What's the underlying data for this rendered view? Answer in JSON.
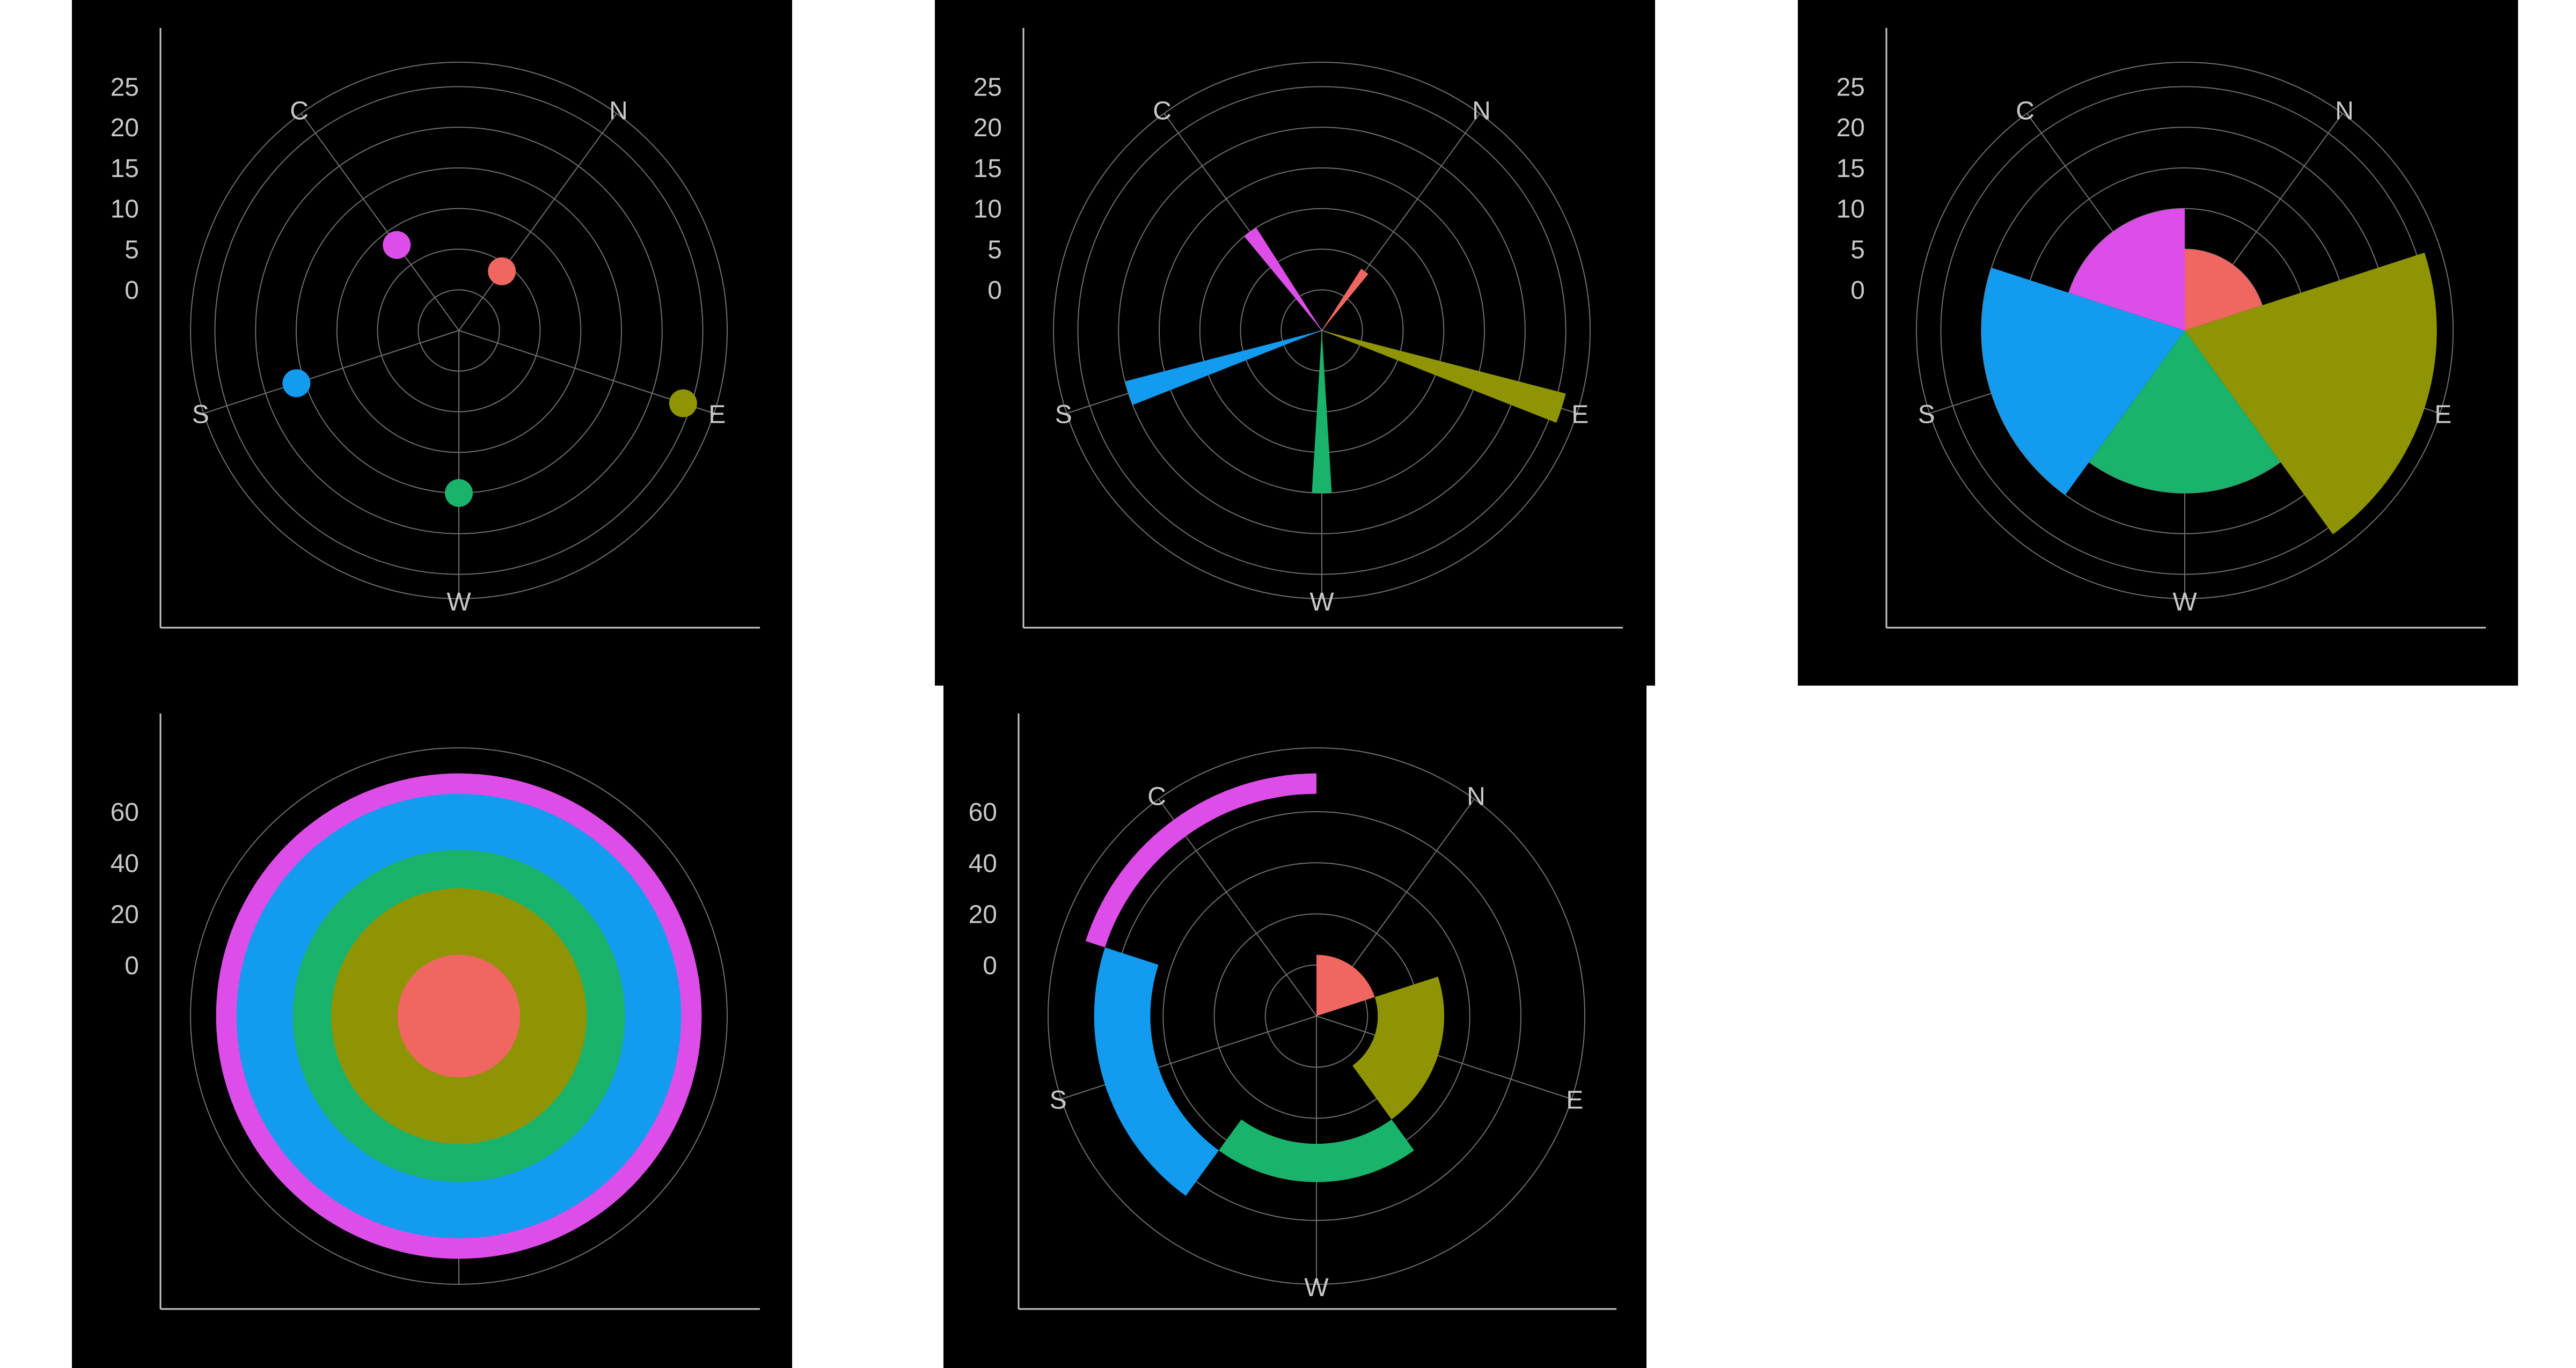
{
  "colors": {
    "background": "#000000",
    "grid": "#6e6e6e",
    "axis": "#c8c8c8",
    "text": "#c8c8c8"
  },
  "chart_data": [
    {
      "type": "scatter",
      "coord": "polar",
      "direction_labels": [
        "C",
        "N",
        "E",
        "W",
        "S"
      ],
      "angular_categories": [
        "C",
        "N",
        "E",
        "W",
        "S"
      ],
      "r_ticks": [
        0,
        5,
        10,
        15,
        20,
        25
      ],
      "rlim": [
        -5,
        28
      ],
      "points": [
        {
          "theta": "C",
          "r": 8,
          "color": "#dd4de8"
        },
        {
          "theta": "N",
          "r": 4,
          "color": "#f06660"
        },
        {
          "theta": "E",
          "r": 24,
          "color": "#8f9405"
        },
        {
          "theta": "W",
          "r": 15,
          "color": "#19b36b"
        },
        {
          "theta": "S",
          "r": 16,
          "color": "#139bef"
        }
      ]
    },
    {
      "type": "bar",
      "coord": "polar",
      "direction_labels": [
        "C",
        "N",
        "E",
        "W",
        "S"
      ],
      "angular_categories": [
        "C",
        "N",
        "E",
        "W",
        "S"
      ],
      "r_ticks": [
        0,
        5,
        10,
        15,
        20,
        25
      ],
      "rlim": [
        -5,
        28
      ],
      "bars": [
        {
          "theta": "C",
          "r": 10,
          "color": "#dd4de8"
        },
        {
          "theta": "N",
          "r": 4,
          "color": "#f06660"
        },
        {
          "theta": "E",
          "r": 26,
          "color": "#8f9405"
        },
        {
          "theta": "W",
          "r": 15,
          "color": "#19b36b"
        },
        {
          "theta": "S",
          "r": 20,
          "color": "#139bef"
        }
      ]
    },
    {
      "type": "area",
      "subtype": "rose",
      "coord": "polar",
      "direction_labels": [
        "C",
        "N",
        "E",
        "W",
        "S"
      ],
      "angular_categories": [
        "N",
        "E",
        "W",
        "S",
        "C"
      ],
      "r_ticks": [
        0,
        5,
        10,
        15,
        20,
        25
      ],
      "rlim": [
        -5,
        28
      ],
      "wedges": [
        {
          "category": "N",
          "r": 5,
          "color": "#f06660"
        },
        {
          "category": "E",
          "r": 26,
          "color": "#8f9405"
        },
        {
          "category": "W",
          "r": 15,
          "color": "#19b36b"
        },
        {
          "category": "S",
          "r": 20,
          "color": "#139bef"
        },
        {
          "category": "C",
          "r": 10,
          "color": "#dd4de8"
        }
      ]
    },
    {
      "type": "bar",
      "subtype": "stacked-radial",
      "coord": "polar",
      "r_ticks": [
        0,
        20,
        40,
        60
      ],
      "rlim": [
        -20,
        85
      ],
      "rings": [
        {
          "r0": 0,
          "r1": 4,
          "color": "#f06660"
        },
        {
          "r0": 4,
          "r1": 30,
          "color": "#8f9405"
        },
        {
          "r0": 30,
          "r1": 45,
          "color": "#19b36b"
        },
        {
          "r0": 45,
          "r1": 67,
          "color": "#139bef"
        },
        {
          "r0": 67,
          "r1": 75,
          "color": "#dd4de8"
        }
      ]
    },
    {
      "type": "bar",
      "subtype": "stacked-polar",
      "coord": "polar",
      "direction_labels": [
        "C",
        "N",
        "E",
        "W",
        "S"
      ],
      "angular_categories": [
        "N",
        "E",
        "W",
        "S",
        "C"
      ],
      "r_ticks": [
        0,
        20,
        40,
        60
      ],
      "rlim": [
        -20,
        85
      ],
      "segments": [
        {
          "category": "N",
          "r0": 0,
          "r1": 4,
          "color": "#f06660"
        },
        {
          "category": "E",
          "r0": 4,
          "r1": 30,
          "color": "#8f9405"
        },
        {
          "category": "W",
          "r0": 30,
          "r1": 45,
          "color": "#19b36b"
        },
        {
          "category": "S",
          "r0": 45,
          "r1": 67,
          "color": "#139bef"
        },
        {
          "category": "C",
          "r0": 67,
          "r1": 75,
          "color": "#dd4de8"
        }
      ]
    }
  ]
}
